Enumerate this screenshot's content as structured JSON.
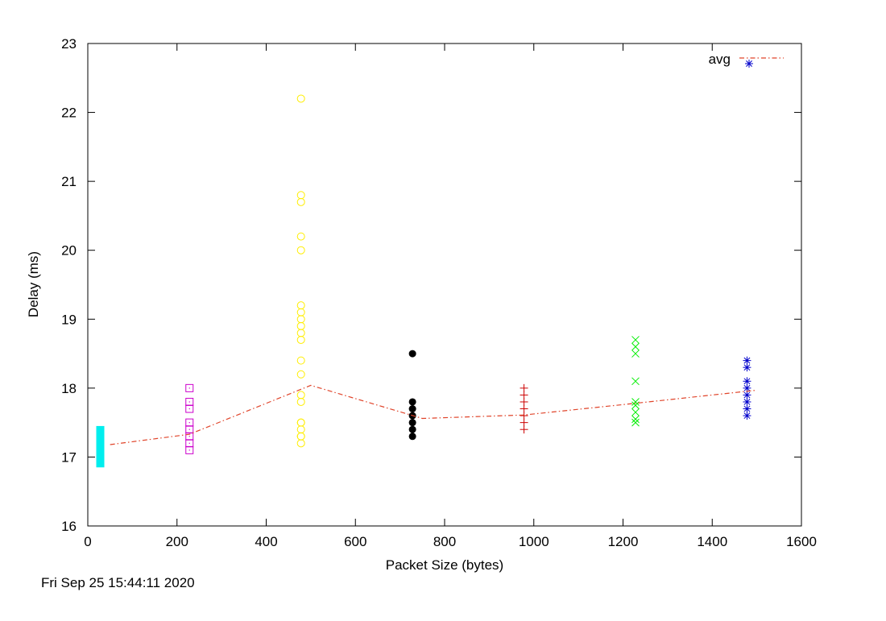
{
  "chart_data": {
    "type": "scatter",
    "xlabel": "Packet Size (bytes)",
    "ylabel": "Delay (ms)",
    "xlim": [
      0,
      1600
    ],
    "ylim": [
      16,
      23
    ],
    "xticks": [
      0,
      200,
      400,
      600,
      800,
      1000,
      1200,
      1400,
      1600
    ],
    "yticks": [
      16,
      17,
      18,
      19,
      20,
      21,
      22,
      23
    ],
    "grid": false,
    "legend_position": "top-right",
    "series": [
      {
        "x": 28,
        "marker": "filled-bar",
        "color": "#00eeee",
        "values": [
          16.85,
          17.45
        ]
      },
      {
        "x": 228,
        "marker": "dotted-square",
        "color": "#cc00cc",
        "values": [
          17.1,
          17.2,
          17.3,
          17.4,
          17.5,
          17.7,
          17.8,
          18.0
        ]
      },
      {
        "x": 478,
        "marker": "circle",
        "color": "#ffee00",
        "values": [
          17.2,
          17.3,
          17.3,
          17.4,
          17.5,
          17.5,
          17.8,
          17.9,
          18.2,
          18.4,
          18.7,
          18.8,
          18.9,
          19.0,
          19.1,
          19.2,
          20.0,
          20.2,
          20.7,
          20.8,
          22.2
        ]
      },
      {
        "x": 728,
        "marker": "filled-circle",
        "color": "#000000",
        "values": [
          17.3,
          17.4,
          17.5,
          17.6,
          17.7,
          17.8,
          18.5
        ]
      },
      {
        "x": 978,
        "marker": "plus",
        "color": "#cc0000",
        "values": [
          17.4,
          17.5,
          17.6,
          17.7,
          17.8,
          17.9,
          18.0
        ]
      },
      {
        "x": 1228,
        "marker": "cross",
        "color": "#00ee00",
        "values": [
          17.5,
          17.55,
          17.65,
          17.75,
          17.8,
          18.1,
          18.5,
          18.6,
          18.7
        ]
      },
      {
        "x": 1478,
        "marker": "asterisk",
        "color": "#0000cc",
        "values": [
          17.6,
          17.7,
          17.8,
          17.9,
          18.0,
          18.1,
          18.3,
          18.4
        ]
      }
    ],
    "avg_line": {
      "name": "avg",
      "color": "#e0442a",
      "style": "dash-dot",
      "x": [
        50,
        228,
        500,
        750,
        978,
        1228,
        1500
      ],
      "y": [
        17.18,
        17.33,
        18.04,
        17.56,
        17.61,
        17.78,
        17.97
      ]
    },
    "legend": {
      "entries": [
        {
          "label": "avg",
          "line_color": "#e0442a",
          "marker": "asterisk",
          "marker_color": "#0000cc"
        }
      ]
    }
  },
  "footer": {
    "timestamp": "Fri Sep 25 15:44:11 2020"
  }
}
